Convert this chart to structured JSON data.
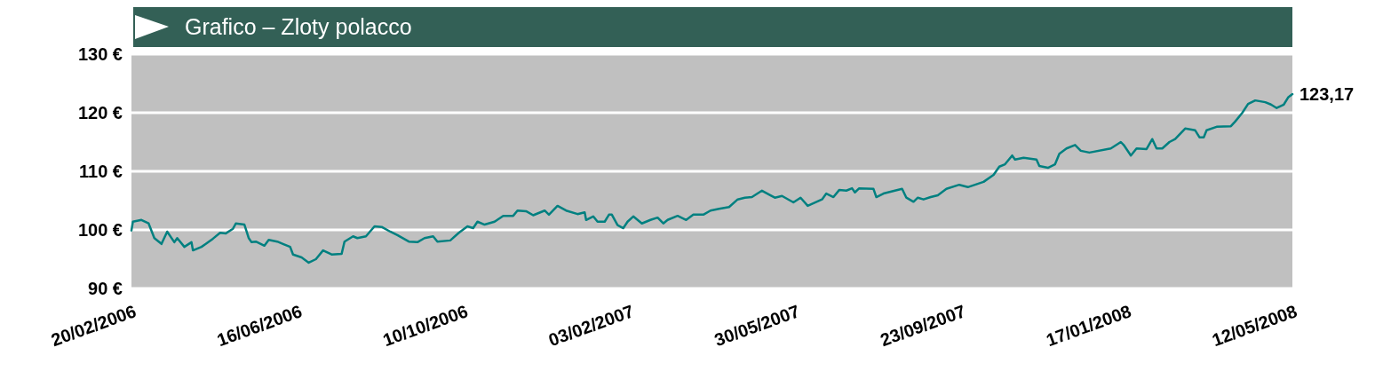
{
  "chart_data": {
    "type": "line",
    "title": "Grafico – Zloty polacco",
    "x": [
      "2006-02-20",
      "2006-02-21",
      "2006-02-27",
      "2006-03-04",
      "2006-03-08",
      "2006-03-13",
      "2006-03-17",
      "2006-03-22",
      "2006-03-24",
      "2006-03-29",
      "2006-04-03",
      "2006-04-04",
      "2006-04-10",
      "2006-04-13",
      "2006-04-18",
      "2006-04-23",
      "2006-04-27",
      "2006-05-02",
      "2006-05-04",
      "2006-05-10",
      "2006-05-13",
      "2006-05-15",
      "2006-05-18",
      "2006-05-24",
      "2006-05-27",
      "2006-06-02",
      "2006-06-06",
      "2006-06-11",
      "2006-06-13",
      "2006-06-19",
      "2006-06-24",
      "2006-06-29",
      "2006-07-04",
      "2006-07-10",
      "2006-07-17",
      "2006-07-19",
      "2006-07-25",
      "2006-07-28",
      "2006-08-03",
      "2006-08-09",
      "2006-08-14",
      "2006-08-20",
      "2006-08-25",
      "2006-09-02",
      "2006-09-08",
      "2006-09-13",
      "2006-09-19",
      "2006-09-22",
      "2006-10-01",
      "2006-10-07",
      "2006-10-13",
      "2006-10-17",
      "2006-10-20",
      "2006-10-25",
      "2006-11-01",
      "2006-11-07",
      "2006-11-14",
      "2006-11-17",
      "2006-11-23",
      "2006-11-28",
      "2006-12-06",
      "2006-12-09",
      "2006-12-15",
      "2006-12-21",
      "2006-12-29",
      "2007-01-03",
      "2007-01-04",
      "2007-01-09",
      "2007-01-12",
      "2007-01-17",
      "2007-01-20",
      "2007-01-22",
      "2007-01-26",
      "2007-01-30",
      "2007-02-02",
      "2007-02-06",
      "2007-02-12",
      "2007-02-18",
      "2007-02-23",
      "2007-02-27",
      "2007-03-02",
      "2007-03-09",
      "2007-03-15",
      "2007-03-20",
      "2007-03-27",
      "2007-04-01",
      "2007-04-07",
      "2007-04-14",
      "2007-04-20",
      "2007-04-25",
      "2007-04-30",
      "2007-05-07",
      "2007-05-13",
      "2007-05-16",
      "2007-05-21",
      "2007-05-29",
      "2007-06-03",
      "2007-06-08",
      "2007-06-18",
      "2007-06-21",
      "2007-06-26",
      "2007-06-30",
      "2007-07-05",
      "2007-07-09",
      "2007-07-11",
      "2007-07-14",
      "2007-07-24",
      "2007-07-26",
      "2007-07-31",
      "2007-08-08",
      "2007-08-13",
      "2007-08-16",
      "2007-08-21",
      "2007-08-24",
      "2007-08-28",
      "2007-09-02",
      "2007-09-07",
      "2007-09-13",
      "2007-09-22",
      "2007-09-28",
      "2007-10-09",
      "2007-10-16",
      "2007-10-20",
      "2007-10-24",
      "2007-10-29",
      "2007-10-31",
      "2007-11-06",
      "2007-11-15",
      "2007-11-17",
      "2007-11-23",
      "2007-11-28",
      "2007-12-01",
      "2007-12-06",
      "2007-12-12",
      "2007-12-16",
      "2007-12-22",
      "2008-01-06",
      "2008-01-13",
      "2008-01-15",
      "2008-01-20",
      "2008-01-24",
      "2008-01-31",
      "2008-02-04",
      "2008-02-07",
      "2008-02-11",
      "2008-02-16",
      "2008-02-20",
      "2008-02-27",
      "2008-03-05",
      "2008-03-08",
      "2008-03-11",
      "2008-03-13",
      "2008-03-20",
      "2008-03-30",
      "2008-04-02",
      "2008-04-07",
      "2008-04-11",
      "2008-04-16",
      "2008-04-23",
      "2008-04-27",
      "2008-05-01",
      "2008-05-06",
      "2008-05-09",
      "2008-05-12"
    ],
    "series": [
      {
        "color": "#008080",
        "values": [
          99.9,
          101.4,
          101.7,
          101.1,
          98.6,
          97.6,
          99.7,
          97.9,
          98.6,
          97.1,
          97.9,
          96.5,
          97.1,
          97.6,
          98.5,
          99.5,
          99.4,
          100.2,
          101.1,
          100.9,
          98.6,
          97.9,
          98.0,
          97.3,
          98.3,
          98.0,
          97.6,
          97.1,
          95.8,
          95.3,
          94.4,
          95.0,
          96.5,
          95.8,
          95.9,
          98.0,
          98.9,
          98.6,
          98.9,
          100.6,
          100.5,
          99.7,
          99.1,
          98.0,
          97.9,
          98.6,
          98.9,
          98.0,
          98.2,
          99.5,
          100.6,
          100.3,
          101.4,
          100.9,
          101.4,
          102.4,
          102.4,
          103.3,
          103.2,
          102.5,
          103.3,
          102.6,
          104.1,
          103.3,
          102.7,
          103.0,
          101.7,
          102.3,
          101.4,
          101.4,
          102.6,
          102.6,
          100.8,
          100.3,
          101.4,
          102.3,
          101.1,
          101.7,
          102.1,
          101.1,
          101.7,
          102.4,
          101.7,
          102.6,
          102.6,
          103.3,
          103.6,
          103.9,
          105.2,
          105.5,
          105.6,
          106.7,
          105.9,
          105.5,
          105.8,
          104.7,
          105.5,
          104.1,
          105.2,
          106.2,
          105.6,
          106.8,
          106.7,
          107.1,
          106.4,
          107.1,
          107.0,
          105.6,
          106.2,
          106.7,
          107.0,
          105.5,
          104.8,
          105.5,
          105.2,
          105.6,
          105.9,
          107.0,
          107.7,
          107.3,
          108.2,
          109.4,
          110.8,
          111.2,
          112.7,
          112.0,
          112.3,
          112.0,
          110.9,
          110.6,
          111.2,
          113.0,
          113.9,
          114.5,
          113.5,
          113.2,
          113.9,
          115.0,
          114.5,
          112.7,
          113.9,
          113.8,
          115.5,
          113.9,
          113.9,
          115.0,
          115.5,
          117.3,
          117.0,
          115.8,
          115.8,
          117.0,
          117.6,
          117.7,
          118.5,
          120.0,
          121.5,
          122.1,
          121.8,
          121.4,
          120.8,
          121.4,
          122.6,
          123.17
        ]
      }
    ],
    "xlim": [
      "2006-02-20",
      "2008-05-12"
    ],
    "xticks": [
      {
        "value": "2006-02-20",
        "label": "20/02/2006"
      },
      {
        "value": "2006-06-16",
        "label": "16/06/2006"
      },
      {
        "value": "2006-10-10",
        "label": "10/10/2006"
      },
      {
        "value": "2007-02-03",
        "label": "03/02/2007"
      },
      {
        "value": "2007-05-30",
        "label": "30/05/2007"
      },
      {
        "value": "2007-09-23",
        "label": "23/09/2007"
      },
      {
        "value": "2008-01-17",
        "label": "17/01/2008"
      },
      {
        "value": "2008-05-12",
        "label": "12/05/2008"
      }
    ],
    "ylim": [
      90,
      130
    ],
    "yticks": [
      {
        "value": 90,
        "label": "90 €"
      },
      {
        "value": 100,
        "label": "100 €"
      },
      {
        "value": 110,
        "label": "110 €"
      },
      {
        "value": 120,
        "label": "120 €"
      },
      {
        "value": 130,
        "label": "130 €"
      }
    ],
    "grid": "y",
    "annotations": [
      {
        "text": "123,17",
        "x": "2008-05-12",
        "y": 123.17
      }
    ]
  }
}
